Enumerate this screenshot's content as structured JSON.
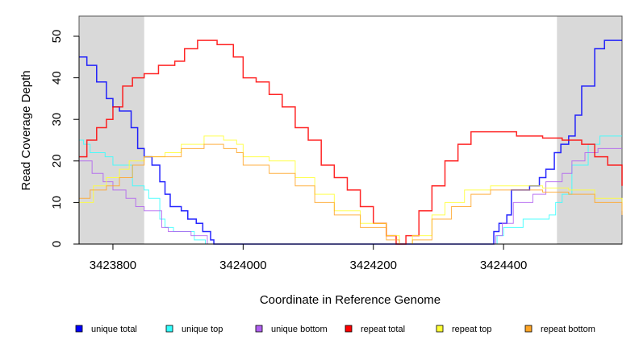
{
  "chart_data": {
    "type": "line",
    "step": true,
    "title": "",
    "xlabel": "Coordinate in Reference Genome",
    "ylabel": "Read Coverage Depth",
    "xlim": [
      3423748,
      3424582
    ],
    "ylim": [
      0,
      55
    ],
    "xticks": [
      3423800,
      3424000,
      3424200,
      3424400
    ],
    "xtick_labels": [
      "3423800",
      "3424000",
      "3424200",
      "3424400"
    ],
    "yticks": [
      0,
      10,
      20,
      30,
      40,
      50
    ],
    "ytick_labels": [
      "0",
      "10",
      "20",
      "30",
      "40",
      "50"
    ],
    "grid": false,
    "legend_position": "bottom",
    "shaded_regions": [
      [
        3423748,
        3423848
      ],
      [
        3424482,
        3424582
      ]
    ],
    "colors": {
      "shade": "#d9d9d9",
      "axis": "#000000"
    },
    "series": [
      {
        "name": "unique total",
        "color": "#0000ff",
        "x": [
          3423748,
          3423760,
          3423775,
          3423790,
          3423800,
          3423810,
          3423828,
          3423838,
          3423848,
          3423860,
          3423872,
          3423880,
          3423888,
          3423905,
          3423915,
          3423928,
          3423938,
          3423950,
          3423955,
          3424380,
          3424385,
          3424393,
          3424405,
          3424412,
          3424440,
          3424455,
          3424465,
          3424478,
          3424488,
          3424500,
          3424510,
          3424520,
          3424540,
          3424555,
          3424582
        ],
        "y": [
          45,
          43,
          39,
          35,
          33,
          32,
          28,
          23,
          21,
          19,
          15,
          12,
          9,
          8,
          6,
          5,
          3,
          1,
          0,
          0,
          3,
          5,
          7,
          13,
          14,
          16,
          18,
          22,
          24,
          26,
          31,
          38,
          47,
          49,
          49
        ]
      },
      {
        "name": "unique top",
        "color": "#33ffff",
        "x": [
          3423748,
          3423755,
          3423765,
          3423788,
          3423800,
          3423830,
          3423848,
          3423855,
          3423872,
          3423880,
          3423893,
          3423925,
          3423942,
          3424385,
          3424390,
          3424400,
          3424430,
          3424470,
          3424480,
          3424490,
          3424505,
          3424530,
          3424548,
          3424582
        ],
        "y": [
          25,
          24,
          22,
          21,
          19,
          14,
          13,
          11,
          6,
          4,
          3,
          1,
          0,
          0,
          2,
          4,
          6,
          7,
          10,
          12,
          19,
          24,
          26,
          26
        ]
      },
      {
        "name": "unique bottom",
        "color": "#b060f0",
        "x": [
          3423748,
          3423768,
          3423785,
          3423800,
          3423820,
          3423835,
          3423848,
          3423875,
          3423885,
          3423920,
          3423945,
          3424382,
          3424388,
          3424398,
          3424415,
          3424445,
          3424465,
          3424490,
          3424505,
          3424525,
          3424545,
          3424582
        ],
        "y": [
          20,
          17,
          15,
          13,
          11,
          9,
          8,
          4,
          3,
          2,
          0,
          0,
          2,
          5,
          10,
          12,
          15,
          17,
          20,
          22,
          23,
          23
        ]
      },
      {
        "name": "repeat total",
        "color": "#ff0000",
        "x": [
          3423748,
          3423760,
          3423775,
          3423790,
          3423800,
          3423815,
          3423830,
          3423848,
          3423870,
          3423895,
          3423910,
          3423930,
          3423945,
          3423960,
          3423985,
          3424000,
          3424020,
          3424040,
          3424060,
          3424080,
          3424100,
          3424120,
          3424140,
          3424160,
          3424180,
          3424200,
          3424220,
          3424235,
          3424250,
          3424270,
          3424290,
          3424310,
          3424330,
          3424350,
          3424380,
          3424420,
          3424460,
          3424490,
          3424520,
          3424540,
          3424560,
          3424582
        ],
        "y": [
          21,
          25,
          28,
          30,
          33,
          38,
          40,
          41,
          43,
          44,
          47,
          49,
          49,
          48,
          45,
          40,
          39,
          36,
          33,
          28,
          25,
          19,
          16,
          13,
          9,
          5,
          2,
          0,
          2,
          8,
          14,
          20,
          24,
          27,
          27,
          26,
          25.5,
          25,
          24,
          21,
          19,
          14
        ]
      },
      {
        "name": "repeat top",
        "color": "#ffff33",
        "x": [
          3423748,
          3423770,
          3423790,
          3423810,
          3423825,
          3423848,
          3423880,
          3423905,
          3423940,
          3423970,
          3423990,
          3424000,
          3424040,
          3424080,
          3424110,
          3424140,
          3424180,
          3424220,
          3424240,
          3424260,
          3424290,
          3424310,
          3424340,
          3424380,
          3424420,
          3424460,
          3424500,
          3424540,
          3424582
        ],
        "y": [
          10,
          14,
          16,
          18,
          20,
          21,
          22,
          24,
          26,
          25,
          24,
          21,
          20,
          16,
          12,
          8,
          5,
          2,
          0,
          2,
          7,
          10,
          13,
          14,
          14,
          13.5,
          13,
          11,
          8
        ]
      },
      {
        "name": "repeat bottom",
        "color": "#ffa526",
        "x": [
          3423748,
          3423765,
          3423790,
          3423810,
          3423830,
          3423848,
          3423880,
          3423905,
          3423940,
          3423970,
          3423990,
          3424000,
          3424040,
          3424080,
          3424110,
          3424140,
          3424180,
          3424220,
          3424240,
          3424260,
          3424290,
          3424320,
          3424350,
          3424380,
          3424420,
          3424460,
          3424500,
          3424540,
          3424582
        ],
        "y": [
          11,
          13,
          14,
          16,
          19,
          21,
          21,
          23,
          24,
          23,
          22,
          19,
          17,
          14,
          10,
          7,
          4,
          1,
          0,
          1,
          6,
          9,
          12,
          13,
          13,
          12.5,
          12,
          10,
          7
        ]
      }
    ]
  }
}
